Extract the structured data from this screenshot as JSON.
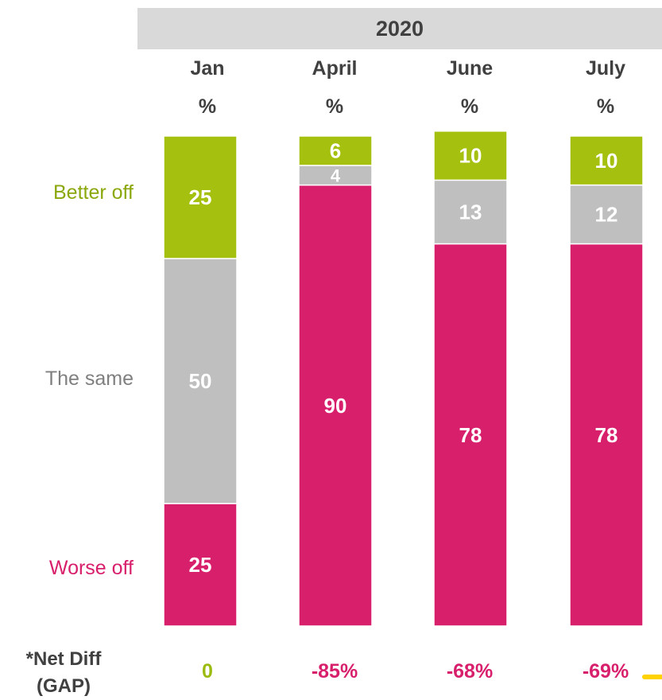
{
  "header": {
    "year": "2020"
  },
  "columns": [
    {
      "month": "Jan",
      "unit": "%",
      "net": "0",
      "net_color": "#9bbb10"
    },
    {
      "month": "April",
      "unit": "%",
      "net": "-85%",
      "net_color": "#d81f6c"
    },
    {
      "month": "June",
      "unit": "%",
      "net": "-68%",
      "net_color": "#d81f6c"
    },
    {
      "month": "July",
      "unit": "%",
      "net": "-69%",
      "net_color": "#d81f6c"
    }
  ],
  "row_labels": {
    "better": "Better off",
    "same": "The same",
    "worse": "Worse off"
  },
  "net_diff": {
    "line1": "*Net Diff",
    "line2": "(GAP)"
  },
  "colors": {
    "better": "#a5c00f",
    "same": "#bfbfbf",
    "worse": "#d81f6c",
    "banner": "#d9d9d9",
    "accent_tail": "#ffd200"
  },
  "chart_data": {
    "type": "bar",
    "stacked": true,
    "title": "2020",
    "categories": [
      "Jan",
      "April",
      "June",
      "July"
    ],
    "series": [
      {
        "name": "Worse off",
        "values": [
          25,
          90,
          78,
          78
        ]
      },
      {
        "name": "The same",
        "values": [
          50,
          4,
          13,
          12
        ]
      },
      {
        "name": "Better off",
        "values": [
          25,
          6,
          10,
          10
        ]
      }
    ],
    "ylabel": "%",
    "ylim": [
      0,
      100
    ],
    "grid": false,
    "legend": "left",
    "net_diff": [
      "0",
      "-85%",
      "-68%",
      "-69%"
    ]
  }
}
